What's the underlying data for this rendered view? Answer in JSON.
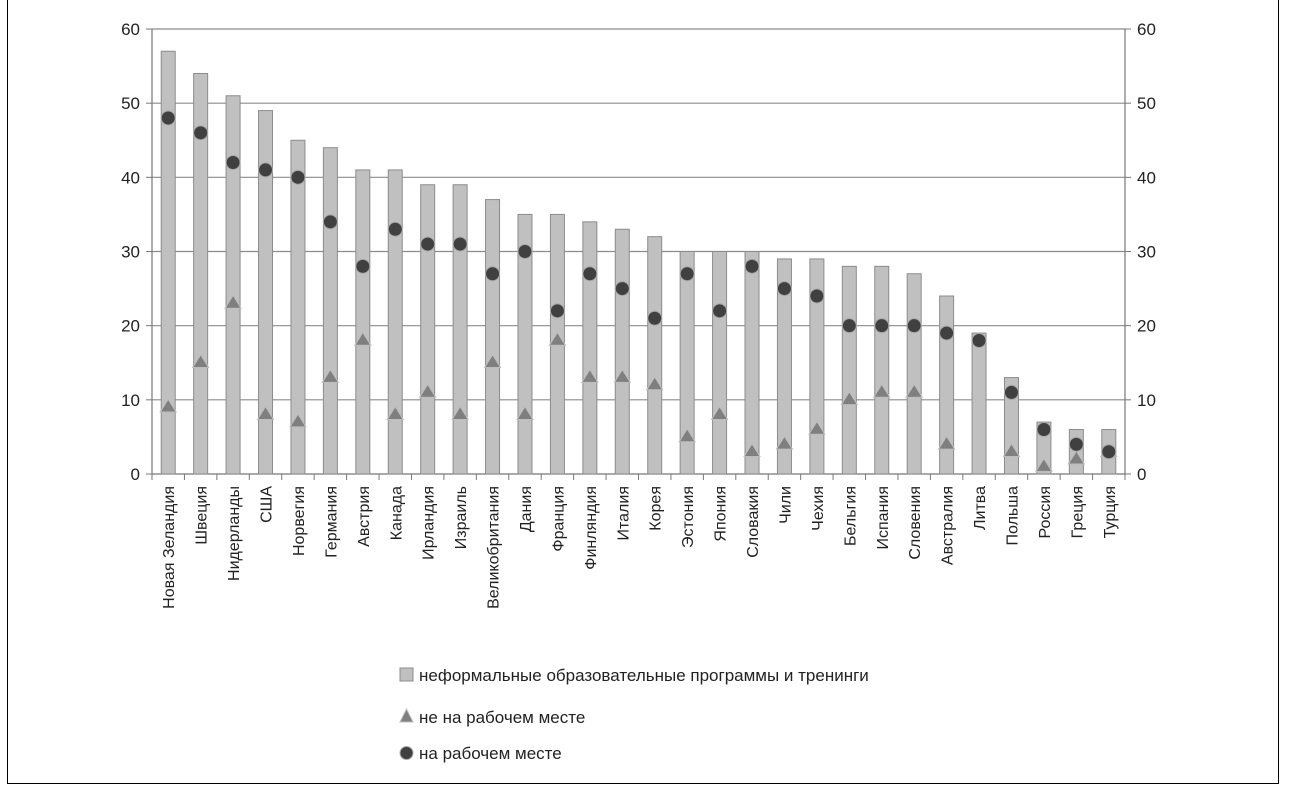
{
  "chart_data": {
    "type": "bar",
    "categories": [
      "Новая Зеландия",
      "Швеция",
      "Нидерланды",
      "США",
      "Норвегия",
      "Германия",
      "Австрия",
      "Канада",
      "Ирландия",
      "Израиль",
      "Великобритания",
      "Дания",
      "Франция",
      "Финляндия",
      "Италия",
      "Корея",
      "Эстония",
      "Япония",
      "Словакия",
      "Чили",
      "Чехия",
      "Бельгия",
      "Испания",
      "Словения",
      "Австралия",
      "Литва",
      "Польша",
      "Россия",
      "Греция",
      "Турция"
    ],
    "series": [
      {
        "name": "неформальные образовательные программы и тренинги",
        "kind": "bar",
        "values": [
          57,
          54,
          51,
          49,
          45,
          44,
          41,
          41,
          39,
          39,
          37,
          35,
          35,
          34,
          33,
          32,
          30,
          30,
          30,
          29,
          29,
          28,
          28,
          27,
          24,
          19,
          13,
          7,
          6,
          6
        ]
      },
      {
        "name": "не на рабочем месте",
        "kind": "triangle",
        "values": [
          9,
          15,
          23,
          8,
          7,
          13,
          18,
          8,
          11,
          8,
          15,
          8,
          18,
          13,
          13,
          12,
          5,
          8,
          3,
          4,
          6,
          10,
          11,
          11,
          4,
          null,
          3,
          1,
          2,
          3
        ]
      },
      {
        "name": "на рабочем месте",
        "kind": "circle",
        "values": [
          48,
          46,
          42,
          41,
          40,
          34,
          28,
          33,
          31,
          31,
          27,
          30,
          22,
          27,
          25,
          21,
          27,
          22,
          28,
          25,
          24,
          20,
          20,
          20,
          19,
          18,
          11,
          6,
          4,
          3
        ]
      }
    ],
    "ylim": [
      0,
      60
    ],
    "yticks": [
      0,
      10,
      20,
      30,
      40,
      50,
      60
    ],
    "y2lim": [
      0,
      60
    ],
    "grid": true,
    "legend_position": "bottom",
    "colors": {
      "bar_fill": "#c0c0c0",
      "bar_stroke": "#8c8c8c",
      "triangle": "#7f7f7f",
      "circle": "#404040",
      "grid": "#8c8c8c"
    }
  }
}
